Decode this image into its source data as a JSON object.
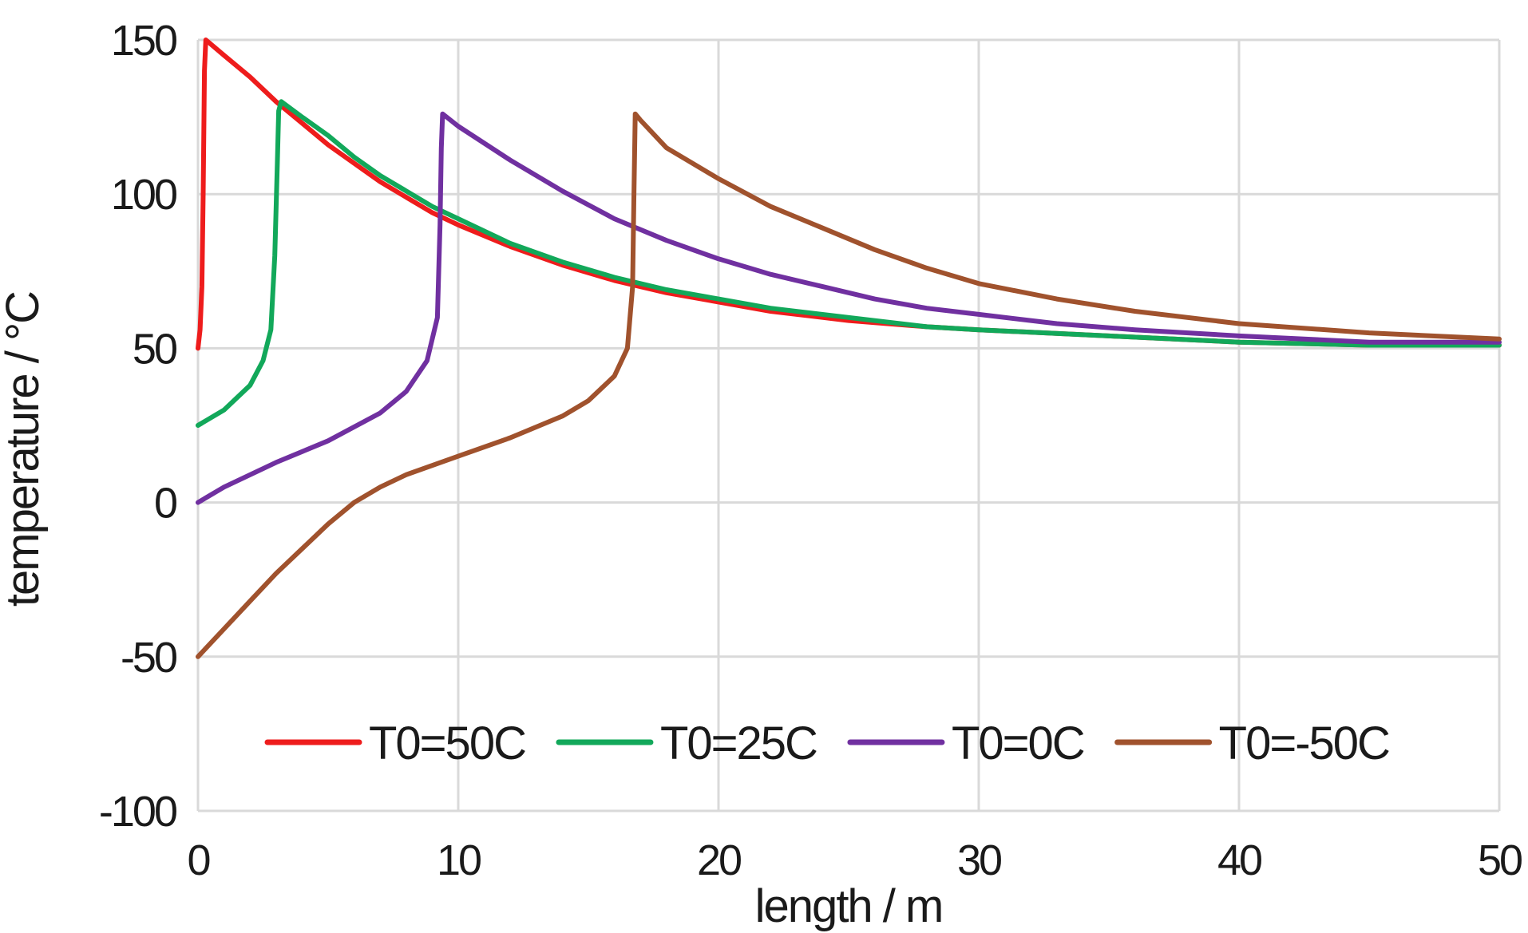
{
  "chart_data": {
    "type": "line",
    "title": "",
    "xlabel": "length / m",
    "ylabel": "temperature / °C",
    "xlim": [
      0,
      50
    ],
    "ylim": [
      -100,
      150
    ],
    "xticks": [
      0,
      10,
      20,
      30,
      40,
      50
    ],
    "yticks": [
      -100,
      -50,
      0,
      50,
      100,
      150
    ],
    "xtick_labels": [
      "0",
      "10",
      "20",
      "30",
      "40",
      "50"
    ],
    "ytick_labels": [
      "-100",
      "-50",
      "0",
      "50",
      "100",
      "150"
    ],
    "grid": true,
    "legend_position": "bottom",
    "series": [
      {
        "name": "T0=50C",
        "color": "#ee1c1c",
        "points": [
          [
            0,
            50
          ],
          [
            0.08,
            56
          ],
          [
            0.15,
            70
          ],
          [
            0.2,
            100
          ],
          [
            0.25,
            140
          ],
          [
            0.3,
            150
          ],
          [
            1,
            145
          ],
          [
            2,
            138
          ],
          [
            3,
            130
          ],
          [
            4,
            123
          ],
          [
            5,
            116
          ],
          [
            6,
            110
          ],
          [
            7,
            104
          ],
          [
            8,
            99
          ],
          [
            9,
            94
          ],
          [
            10,
            90
          ],
          [
            12,
            83
          ],
          [
            14,
            77
          ],
          [
            16,
            72
          ],
          [
            18,
            68
          ],
          [
            20,
            65
          ],
          [
            22,
            62
          ],
          [
            25,
            59
          ],
          [
            28,
            57
          ],
          [
            30,
            56
          ],
          [
            35,
            54
          ],
          [
            40,
            52
          ],
          [
            45,
            51
          ],
          [
            50,
            51
          ]
        ]
      },
      {
        "name": "T0=25C",
        "color": "#12a85a",
        "points": [
          [
            0,
            25
          ],
          [
            1,
            30
          ],
          [
            2,
            38
          ],
          [
            2.5,
            46
          ],
          [
            2.8,
            56
          ],
          [
            2.95,
            80
          ],
          [
            3.05,
            110
          ],
          [
            3.1,
            127
          ],
          [
            3.2,
            130
          ],
          [
            4,
            125
          ],
          [
            5,
            119
          ],
          [
            6,
            112
          ],
          [
            7,
            106
          ],
          [
            8,
            101
          ],
          [
            9,
            96
          ],
          [
            10,
            92
          ],
          [
            12,
            84
          ],
          [
            14,
            78
          ],
          [
            16,
            73
          ],
          [
            18,
            69
          ],
          [
            20,
            66
          ],
          [
            22,
            63
          ],
          [
            25,
            60
          ],
          [
            28,
            57
          ],
          [
            30,
            56
          ],
          [
            35,
            54
          ],
          [
            40,
            52
          ],
          [
            45,
            51
          ],
          [
            50,
            51
          ]
        ]
      },
      {
        "name": "T0=0C",
        "color": "#7030a0",
        "points": [
          [
            0,
            0
          ],
          [
            1,
            5
          ],
          [
            3,
            13
          ],
          [
            5,
            20
          ],
          [
            7,
            29
          ],
          [
            8,
            36
          ],
          [
            8.8,
            46
          ],
          [
            9.2,
            60
          ],
          [
            9.3,
            90
          ],
          [
            9.35,
            115
          ],
          [
            9.4,
            126
          ],
          [
            10,
            122
          ],
          [
            12,
            111
          ],
          [
            14,
            101
          ],
          [
            16,
            92
          ],
          [
            18,
            85
          ],
          [
            20,
            79
          ],
          [
            22,
            74
          ],
          [
            24,
            70
          ],
          [
            26,
            66
          ],
          [
            28,
            63
          ],
          [
            30,
            61
          ],
          [
            33,
            58
          ],
          [
            36,
            56
          ],
          [
            40,
            54
          ],
          [
            45,
            52
          ],
          [
            50,
            52
          ]
        ]
      },
      {
        "name": "T0=-50C",
        "color": "#a0522d",
        "points": [
          [
            0,
            -50
          ],
          [
            1,
            -41
          ],
          [
            2,
            -32
          ],
          [
            3,
            -23
          ],
          [
            4,
            -15
          ],
          [
            5,
            -7
          ],
          [
            6,
            0
          ],
          [
            7,
            5
          ],
          [
            8,
            9
          ],
          [
            10,
            15
          ],
          [
            12,
            21
          ],
          [
            14,
            28
          ],
          [
            15,
            33
          ],
          [
            16,
            41
          ],
          [
            16.5,
            50
          ],
          [
            16.7,
            70
          ],
          [
            16.75,
            100
          ],
          [
            16.8,
            126
          ],
          [
            17,
            124
          ],
          [
            18,
            115
          ],
          [
            20,
            105
          ],
          [
            22,
            96
          ],
          [
            24,
            89
          ],
          [
            26,
            82
          ],
          [
            28,
            76
          ],
          [
            30,
            71
          ],
          [
            33,
            66
          ],
          [
            36,
            62
          ],
          [
            40,
            58
          ],
          [
            45,
            55
          ],
          [
            50,
            53
          ]
        ]
      }
    ]
  }
}
